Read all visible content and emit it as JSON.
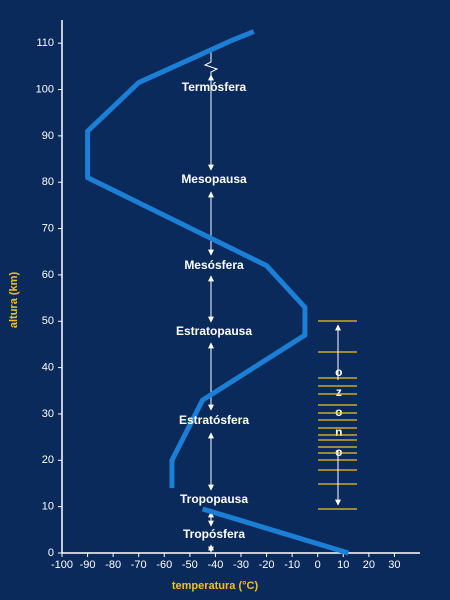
{
  "chart_data": {
    "type": "line",
    "xlabel": "temperatura (°C)",
    "ylabel": "altura (km)",
    "xlim": [
      -100,
      40
    ],
    "ylim": [
      0,
      115
    ],
    "xticks": [
      -100,
      -90,
      -80,
      -70,
      -60,
      -50,
      -40,
      -30,
      -20,
      -10,
      0,
      10,
      20,
      30
    ],
    "yticks": [
      0,
      10,
      20,
      30,
      40,
      50,
      60,
      70,
      80,
      90,
      100,
      110
    ],
    "series": [
      {
        "color": "#1c7fd6",
        "x": [
          -25,
          -34,
          -70,
          -90,
          -90,
          -20,
          -5,
          -5,
          -45,
          -57,
          -57
        ],
        "values": [
          112.5,
          110.5,
          101.5,
          91,
          81,
          62,
          53,
          47,
          33,
          20,
          14
        ]
      },
      {
        "color": "#1c7fd6",
        "x": [
          -45,
          12
        ],
        "values": [
          9.5,
          0
        ]
      }
    ],
    "layers": [
      "Termósfera",
      "Mesopausa",
      "Mesósfera",
      "Estratopausa",
      "Estratósfera",
      "Tropopausa",
      "Tropósfera"
    ],
    "ozone_label": "ozono"
  }
}
